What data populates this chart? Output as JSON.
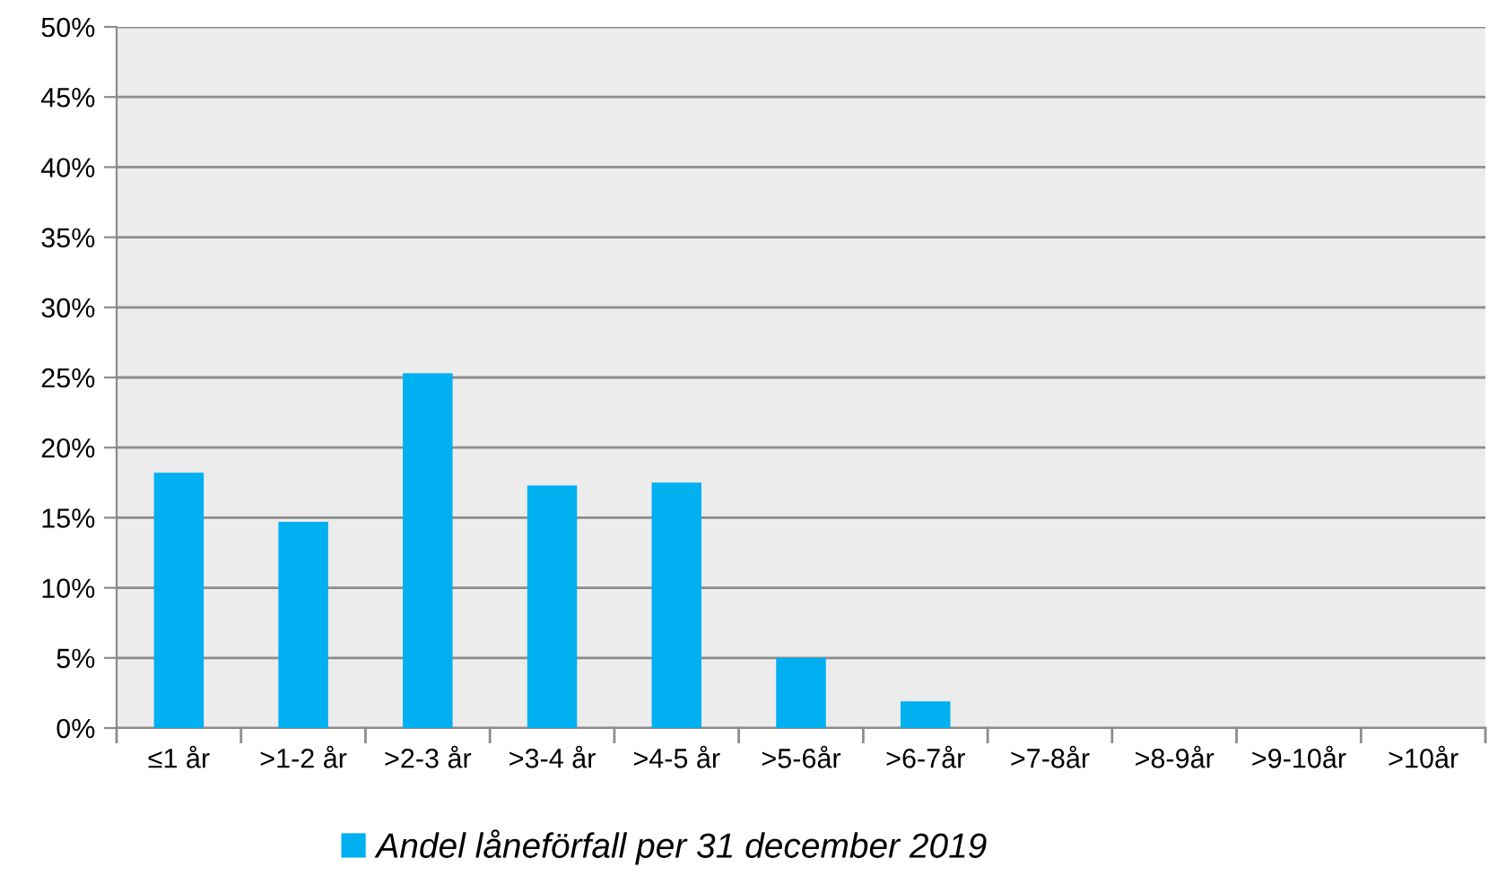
{
  "chart_data": {
    "type": "bar",
    "categories": [
      "≤1 år",
      ">1-2 år",
      ">2-3 år",
      ">3-4 år",
      ">4-5 år",
      ">5-6år",
      ">6-7år",
      ">7-8år",
      ">8-9år",
      ">9-10år",
      ">10år"
    ],
    "series": [
      {
        "name": "Andel låneförfall per 31 december 2019",
        "color": "#00b0f0",
        "values": [
          18.2,
          14.7,
          25.3,
          17.3,
          17.5,
          5.0,
          1.9,
          0,
          0,
          0,
          0
        ]
      }
    ],
    "ylim": [
      0,
      50
    ],
    "yticks": [
      {
        "value": 0,
        "label": "0%"
      },
      {
        "value": 5,
        "label": "5%"
      },
      {
        "value": 10,
        "label": "10%"
      },
      {
        "value": 15,
        "label": "15%"
      },
      {
        "value": 20,
        "label": "20%"
      },
      {
        "value": 25,
        "label": "25%"
      },
      {
        "value": 30,
        "label": "30%"
      },
      {
        "value": 35,
        "label": "35%"
      },
      {
        "value": 40,
        "label": "40%"
      },
      {
        "value": 45,
        "label": "45%"
      },
      {
        "value": 50,
        "label": "50%"
      }
    ],
    "grid": "y",
    "legend": "bottom"
  }
}
